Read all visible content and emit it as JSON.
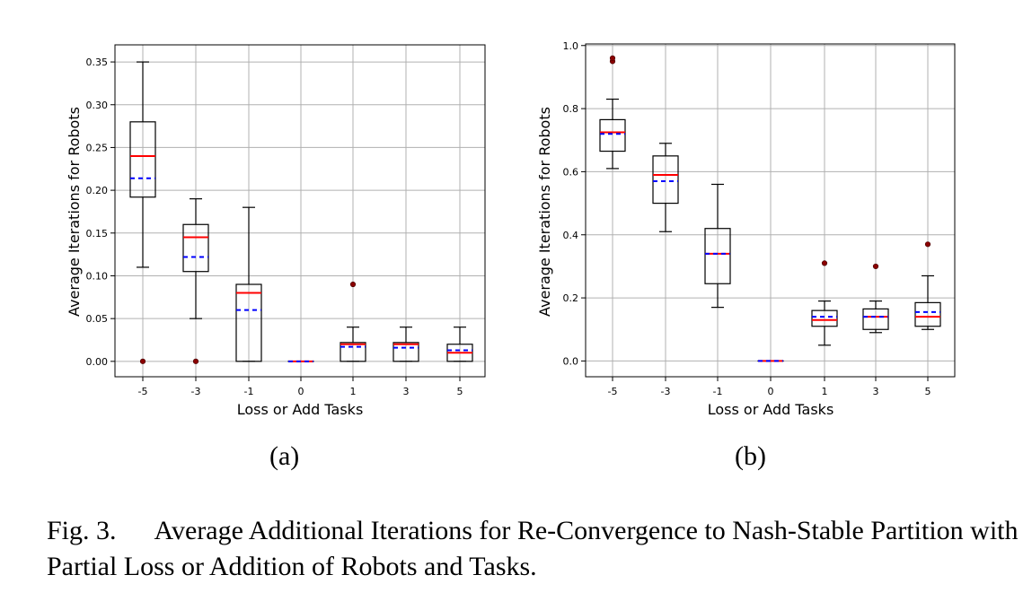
{
  "chart_data": [
    {
      "type": "box",
      "panel": "(a)",
      "xlabel": "Loss or Add Tasks",
      "ylabel": "Average Iterations for Robots",
      "categories": [
        "-5",
        "-3",
        "-1",
        "0",
        "1",
        "3",
        "5"
      ],
      "ylim": [
        -0.018,
        0.37
      ],
      "yticks": [
        "0.00",
        "0.05",
        "0.10",
        "0.15",
        "0.20",
        "0.25",
        "0.30",
        "0.35"
      ],
      "grid": true,
      "boxes": [
        {
          "category": "-5",
          "whisker_low": 0.11,
          "q1": 0.192,
          "median": 0.24,
          "mean": 0.214,
          "q3": 0.28,
          "whisker_high": 0.35,
          "outliers": [
            0.0
          ]
        },
        {
          "category": "-3",
          "whisker_low": 0.05,
          "q1": 0.105,
          "median": 0.145,
          "mean": 0.122,
          "q3": 0.16,
          "whisker_high": 0.19,
          "outliers": [
            0.0
          ]
        },
        {
          "category": "-1",
          "whisker_low": 0.0,
          "q1": 0.0,
          "median": 0.08,
          "mean": 0.06,
          "q3": 0.09,
          "whisker_high": 0.18,
          "outliers": []
        },
        {
          "category": "0",
          "whisker_low": 0.0,
          "q1": 0.0,
          "median": 0.0,
          "mean": 0.0,
          "q3": 0.0,
          "whisker_high": 0.0,
          "outliers": []
        },
        {
          "category": "1",
          "whisker_low": 0.0,
          "q1": 0.0,
          "median": 0.02,
          "mean": 0.017,
          "q3": 0.022,
          "whisker_high": 0.04,
          "outliers": [
            0.09
          ]
        },
        {
          "category": "3",
          "whisker_low": 0.0,
          "q1": 0.0,
          "median": 0.02,
          "mean": 0.016,
          "q3": 0.022,
          "whisker_high": 0.04,
          "outliers": []
        },
        {
          "category": "5",
          "whisker_low": 0.0,
          "q1": 0.0,
          "median": 0.01,
          "mean": 0.013,
          "q3": 0.02,
          "whisker_high": 0.04,
          "outliers": []
        }
      ]
    },
    {
      "type": "box",
      "panel": "(b)",
      "xlabel": "Loss or Add Tasks",
      "ylabel": "Average Iterations for Robots",
      "categories": [
        "-5",
        "-3",
        "-1",
        "0",
        "1",
        "3",
        "5"
      ],
      "ylim": [
        -0.05,
        1.005
      ],
      "yticks": [
        "0.0",
        "0.2",
        "0.4",
        "0.6",
        "0.8",
        "1.0"
      ],
      "grid": true,
      "boxes": [
        {
          "category": "-5",
          "whisker_low": 0.61,
          "q1": 0.665,
          "median": 0.725,
          "mean": 0.72,
          "q3": 0.765,
          "whisker_high": 0.83,
          "outliers": [
            0.95,
            0.96
          ]
        },
        {
          "category": "-3",
          "whisker_low": 0.41,
          "q1": 0.5,
          "median": 0.59,
          "mean": 0.57,
          "q3": 0.65,
          "whisker_high": 0.69,
          "outliers": []
        },
        {
          "category": "-1",
          "whisker_low": 0.17,
          "q1": 0.245,
          "median": 0.34,
          "mean": 0.34,
          "q3": 0.42,
          "whisker_high": 0.56,
          "outliers": []
        },
        {
          "category": "0",
          "whisker_low": 0.0,
          "q1": 0.0,
          "median": 0.0,
          "mean": 0.0,
          "q3": 0.0,
          "whisker_high": 0.0,
          "outliers": []
        },
        {
          "category": "1",
          "whisker_low": 0.05,
          "q1": 0.11,
          "median": 0.13,
          "mean": 0.14,
          "q3": 0.16,
          "whisker_high": 0.19,
          "outliers": [
            0.31
          ]
        },
        {
          "category": "3",
          "whisker_low": 0.09,
          "q1": 0.1,
          "median": 0.14,
          "mean": 0.14,
          "q3": 0.165,
          "whisker_high": 0.19,
          "outliers": [
            0.3
          ]
        },
        {
          "category": "5",
          "whisker_low": 0.1,
          "q1": 0.11,
          "median": 0.14,
          "mean": 0.155,
          "q3": 0.185,
          "whisker_high": 0.27,
          "outliers": [
            0.37
          ]
        }
      ]
    }
  ],
  "colors": {
    "median": "#ff0000",
    "mean": "#0000ff",
    "outlier": "#8b0000",
    "box": "#000000",
    "grid": "#b0b0b0"
  },
  "sublabels": {
    "a": "(a)",
    "b": "(b)"
  },
  "caption": {
    "figure": "Fig. 3.",
    "text": "Average Additional Iterations for Re-Convergence to Nash-Stable Partition with Partial Loss or Addition of Robots and Tasks."
  }
}
